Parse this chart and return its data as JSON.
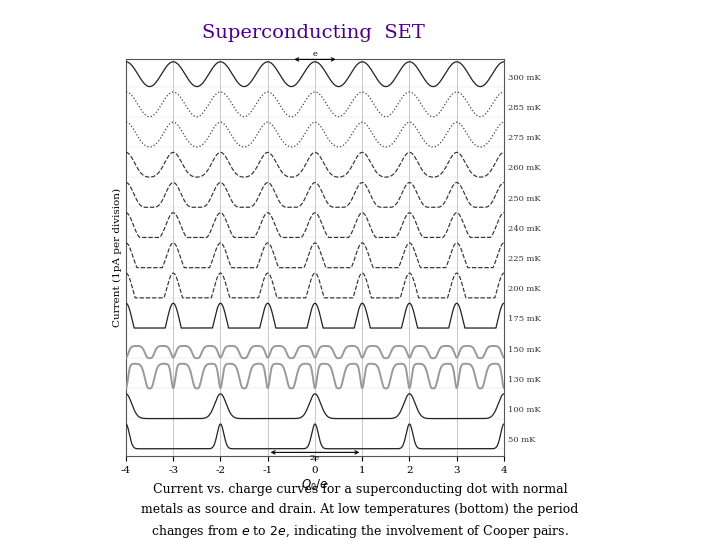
{
  "title": "Superconducting  SET",
  "title_color": "#4B0082",
  "xlabel": "$Q_0/e$",
  "ylabel": "Current (1pA per division)",
  "xlim": [
    -4,
    4
  ],
  "xticks": [
    -4,
    -3,
    -2,
    -1,
    0,
    1,
    2,
    3,
    4
  ],
  "background_color": "#ffffff",
  "plot_bg_color": "#ffffff",
  "temperatures": [
    300,
    285,
    275,
    260,
    250,
    240,
    225,
    200,
    175,
    150,
    130,
    100,
    50
  ],
  "caption_line1": "Current vs. charge curves for a superconducting dot with normal",
  "caption_line2": "metals as source and drain. At low temperatures (bottom) the period",
  "caption_line3": "changes from $e$ to $2e$, indicating the involvement of Cooper pairs."
}
